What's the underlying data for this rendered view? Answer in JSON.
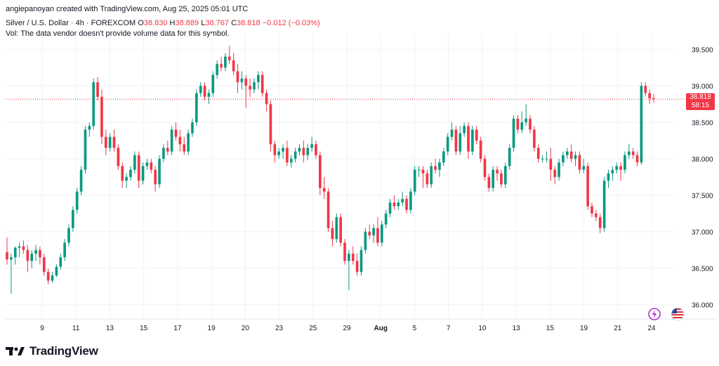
{
  "header": {
    "created_by": "angiepanoyan created with TradingView.com, Aug 25, 2025 05:01 UTC"
  },
  "legend": {
    "symbol": "Silver / U.S. Dollar · 4h · FOREXCOM",
    "o_label": "O",
    "o": "38.830",
    "h_label": "H",
    "h": "38.889",
    "l_label": "L",
    "l": "38.767",
    "c_label": "C",
    "c": "38.818",
    "change": "−0.012 (−0.03%)",
    "vol_note": "Vol: The data vendor doesn't provide volume data for this symbol."
  },
  "price_tag": {
    "price": "38.818",
    "countdown": "58:15"
  },
  "brand": {
    "name": "TradingView"
  },
  "colors": {
    "up": "#089981",
    "down": "#f23645",
    "grid": "#f0f3fa",
    "text": "#131722"
  },
  "icons": {
    "left": "lightning-icon",
    "right": "us-flag-icon"
  },
  "chart_data": {
    "type": "candlestick",
    "ylim": [
      35.9,
      39.6
    ],
    "y_ticks": [
      "36.000",
      "36.500",
      "37.000",
      "37.500",
      "38.000",
      "38.500",
      "39.000",
      "39.500"
    ],
    "x_ticks": [
      "9",
      "11",
      "13",
      "15",
      "17",
      "19",
      "20",
      "23",
      "25",
      "29",
      "Aug",
      "5",
      "7",
      "10",
      "13",
      "15",
      "19",
      "21",
      "24"
    ],
    "last_price": 38.818,
    "candles": [
      [
        36.72,
        36.92,
        36.55,
        36.62
      ],
      [
        36.62,
        36.7,
        36.15,
        36.65
      ],
      [
        36.65,
        36.8,
        36.55,
        36.78
      ],
      [
        36.78,
        36.85,
        36.65,
        36.8
      ],
      [
        36.8,
        36.88,
        36.7,
        36.75
      ],
      [
        36.75,
        36.82,
        36.45,
        36.6
      ],
      [
        36.6,
        36.75,
        36.5,
        36.7
      ],
      [
        36.7,
        36.82,
        36.6,
        36.75
      ],
      [
        36.75,
        36.8,
        36.55,
        36.65
      ],
      [
        36.65,
        36.7,
        36.4,
        36.45
      ],
      [
        36.45,
        36.5,
        36.28,
        36.33
      ],
      [
        36.33,
        36.45,
        36.3,
        36.4
      ],
      [
        36.4,
        36.55,
        36.38,
        36.52
      ],
      [
        36.52,
        36.7,
        36.48,
        36.65
      ],
      [
        36.65,
        36.9,
        36.6,
        36.85
      ],
      [
        36.85,
        37.1,
        36.8,
        37.05
      ],
      [
        37.05,
        37.35,
        37.0,
        37.3
      ],
      [
        37.3,
        37.6,
        37.25,
        37.55
      ],
      [
        37.55,
        37.9,
        37.5,
        37.85
      ],
      [
        37.85,
        38.45,
        37.8,
        38.4
      ],
      [
        38.4,
        38.5,
        38.3,
        38.45
      ],
      [
        38.45,
        39.1,
        38.4,
        39.05
      ],
      [
        39.05,
        39.12,
        38.8,
        38.85
      ],
      [
        38.85,
        38.95,
        38.2,
        38.3
      ],
      [
        38.3,
        38.4,
        38.05,
        38.15
      ],
      [
        38.15,
        38.35,
        38.1,
        38.3
      ],
      [
        38.3,
        38.4,
        38.1,
        38.15
      ],
      [
        38.15,
        38.2,
        37.85,
        37.9
      ],
      [
        37.9,
        37.95,
        37.6,
        37.7
      ],
      [
        37.7,
        37.8,
        37.6,
        37.75
      ],
      [
        37.75,
        37.9,
        37.7,
        37.85
      ],
      [
        37.85,
        38.1,
        37.8,
        38.05
      ],
      [
        38.05,
        38.1,
        37.6,
        37.7
      ],
      [
        37.7,
        37.95,
        37.65,
        37.9
      ],
      [
        37.9,
        38.0,
        37.85,
        37.95
      ],
      [
        37.95,
        38.0,
        37.8,
        37.85
      ],
      [
        37.85,
        37.9,
        37.55,
        37.65
      ],
      [
        37.65,
        38.05,
        37.6,
        38.0
      ],
      [
        38.0,
        38.2,
        37.95,
        38.15
      ],
      [
        38.15,
        38.25,
        38.05,
        38.1
      ],
      [
        38.1,
        38.45,
        38.05,
        38.4
      ],
      [
        38.4,
        38.5,
        38.25,
        38.3
      ],
      [
        38.3,
        38.4,
        38.1,
        38.2
      ],
      [
        38.2,
        38.3,
        38.05,
        38.1
      ],
      [
        38.1,
        38.4,
        38.05,
        38.35
      ],
      [
        38.35,
        38.55,
        38.3,
        38.5
      ],
      [
        38.5,
        38.95,
        38.45,
        38.9
      ],
      [
        38.9,
        39.05,
        38.85,
        39.0
      ],
      [
        39.0,
        39.05,
        38.8,
        38.85
      ],
      [
        38.85,
        38.95,
        38.75,
        38.9
      ],
      [
        38.9,
        39.2,
        38.85,
        39.15
      ],
      [
        39.15,
        39.35,
        39.1,
        39.3
      ],
      [
        39.3,
        39.4,
        39.2,
        39.25
      ],
      [
        39.25,
        39.45,
        39.2,
        39.4
      ],
      [
        39.4,
        39.55,
        39.3,
        39.35
      ],
      [
        39.35,
        39.45,
        39.15,
        39.2
      ],
      [
        39.2,
        39.3,
        38.9,
        39.05
      ],
      [
        39.05,
        39.2,
        38.95,
        39.1
      ],
      [
        39.1,
        39.15,
        38.7,
        39.0
      ],
      [
        39.0,
        39.1,
        38.85,
        38.95
      ],
      [
        38.95,
        39.1,
        38.9,
        39.05
      ],
      [
        39.05,
        39.2,
        38.95,
        39.15
      ],
      [
        39.15,
        39.2,
        38.85,
        38.9
      ],
      [
        38.9,
        38.95,
        38.65,
        38.75
      ],
      [
        38.75,
        38.8,
        38.1,
        38.2
      ],
      [
        38.2,
        38.25,
        37.95,
        38.05
      ],
      [
        38.05,
        38.15,
        38.0,
        38.1
      ],
      [
        38.1,
        38.2,
        38.0,
        38.15
      ],
      [
        38.15,
        38.25,
        37.9,
        37.95
      ],
      [
        37.95,
        38.05,
        37.88,
        38.0
      ],
      [
        38.0,
        38.15,
        37.95,
        38.1
      ],
      [
        38.1,
        38.2,
        38.05,
        38.15
      ],
      [
        38.15,
        38.25,
        37.95,
        38.05
      ],
      [
        38.05,
        38.2,
        37.98,
        38.15
      ],
      [
        38.15,
        38.3,
        38.1,
        38.2
      ],
      [
        38.2,
        38.25,
        38.0,
        38.05
      ],
      [
        38.05,
        38.1,
        37.5,
        37.6
      ],
      [
        37.6,
        37.75,
        37.45,
        37.55
      ],
      [
        37.55,
        37.6,
        37.0,
        37.05
      ],
      [
        37.05,
        37.15,
        36.8,
        36.9
      ],
      [
        36.9,
        37.25,
        36.85,
        37.2
      ],
      [
        37.2,
        37.25,
        36.8,
        36.85
      ],
      [
        36.85,
        36.9,
        36.55,
        36.6
      ],
      [
        36.6,
        36.75,
        36.2,
        36.7
      ],
      [
        36.7,
        36.8,
        36.55,
        36.6
      ],
      [
        36.6,
        36.7,
        36.4,
        36.45
      ],
      [
        36.45,
        36.8,
        36.4,
        36.75
      ],
      [
        36.75,
        37.05,
        36.7,
        37.0
      ],
      [
        37.0,
        37.1,
        36.9,
        36.95
      ],
      [
        36.95,
        37.1,
        36.85,
        37.05
      ],
      [
        37.05,
        37.2,
        36.8,
        36.85
      ],
      [
        36.85,
        37.15,
        36.8,
        37.1
      ],
      [
        37.1,
        37.3,
        37.05,
        37.25
      ],
      [
        37.25,
        37.45,
        37.2,
        37.4
      ],
      [
        37.4,
        37.5,
        37.3,
        37.35
      ],
      [
        37.35,
        37.45,
        37.3,
        37.4
      ],
      [
        37.4,
        37.55,
        37.35,
        37.45
      ],
      [
        37.45,
        37.5,
        37.25,
        37.3
      ],
      [
        37.3,
        37.6,
        37.25,
        37.55
      ],
      [
        37.55,
        37.9,
        37.5,
        37.85
      ],
      [
        37.85,
        37.9,
        37.75,
        37.85
      ],
      [
        37.85,
        37.9,
        37.6,
        37.8
      ],
      [
        37.8,
        37.85,
        37.6,
        37.65
      ],
      [
        37.65,
        37.95,
        37.6,
        37.9
      ],
      [
        37.9,
        38.0,
        37.8,
        37.85
      ],
      [
        37.85,
        38.0,
        37.75,
        37.95
      ],
      [
        37.95,
        38.15,
        37.9,
        38.1
      ],
      [
        38.1,
        38.35,
        38.05,
        38.3
      ],
      [
        38.3,
        38.5,
        38.25,
        38.4
      ],
      [
        38.4,
        38.45,
        38.05,
        38.1
      ],
      [
        38.1,
        38.45,
        38.05,
        38.35
      ],
      [
        38.35,
        38.5,
        38.3,
        38.45
      ],
      [
        38.45,
        38.5,
        38.0,
        38.1
      ],
      [
        38.1,
        38.45,
        38.05,
        38.4
      ],
      [
        38.4,
        38.45,
        38.2,
        38.25
      ],
      [
        38.25,
        38.3,
        37.95,
        38.0
      ],
      [
        38.0,
        38.05,
        37.7,
        37.75
      ],
      [
        37.75,
        37.8,
        37.55,
        37.6
      ],
      [
        37.6,
        37.9,
        37.55,
        37.85
      ],
      [
        37.85,
        37.9,
        37.7,
        37.8
      ],
      [
        37.8,
        37.85,
        37.6,
        37.65
      ],
      [
        37.65,
        37.95,
        37.6,
        37.9
      ],
      [
        37.9,
        38.2,
        37.85,
        38.15
      ],
      [
        38.15,
        38.6,
        38.1,
        38.55
      ],
      [
        38.55,
        38.6,
        38.35,
        38.4
      ],
      [
        38.4,
        38.65,
        38.35,
        38.5
      ],
      [
        38.5,
        38.75,
        38.45,
        38.55
      ],
      [
        38.55,
        38.6,
        38.35,
        38.4
      ],
      [
        38.4,
        38.45,
        38.1,
        38.15
      ],
      [
        38.15,
        38.2,
        37.95,
        38.0
      ],
      [
        38.0,
        38.05,
        37.95,
        38.0
      ],
      [
        38.0,
        38.1,
        37.95,
        38.0
      ],
      [
        38.0,
        38.15,
        37.7,
        37.85
      ],
      [
        37.85,
        37.9,
        37.65,
        37.75
      ],
      [
        37.75,
        38.0,
        37.7,
        37.95
      ],
      [
        37.95,
        38.1,
        37.9,
        38.05
      ],
      [
        38.05,
        38.15,
        38.0,
        38.1
      ],
      [
        38.1,
        38.2,
        37.95,
        38.0
      ],
      [
        38.0,
        38.1,
        37.9,
        38.05
      ],
      [
        38.05,
        38.1,
        37.8,
        37.85
      ],
      [
        37.85,
        38.0,
        37.8,
        37.9
      ],
      [
        37.9,
        37.95,
        37.3,
        37.35
      ],
      [
        37.35,
        37.4,
        37.2,
        37.25
      ],
      [
        37.25,
        37.3,
        37.15,
        37.2
      ],
      [
        37.2,
        37.25,
        36.98,
        37.05
      ],
      [
        37.05,
        37.75,
        37.0,
        37.7
      ],
      [
        37.7,
        37.85,
        37.6,
        37.8
      ],
      [
        37.8,
        37.9,
        37.7,
        37.85
      ],
      [
        37.85,
        37.95,
        37.8,
        37.9
      ],
      [
        37.9,
        37.95,
        37.7,
        37.85
      ],
      [
        37.85,
        38.1,
        37.8,
        38.05
      ],
      [
        38.05,
        38.2,
        38.0,
        38.1
      ],
      [
        38.1,
        38.15,
        38.0,
        38.05
      ],
      [
        38.05,
        38.1,
        37.9,
        37.95
      ],
      [
        37.95,
        39.05,
        37.92,
        39.0
      ],
      [
        39.0,
        39.05,
        38.85,
        38.9
      ],
      [
        38.9,
        38.95,
        38.75,
        38.83
      ],
      [
        38.83,
        38.889,
        38.767,
        38.818
      ]
    ]
  }
}
